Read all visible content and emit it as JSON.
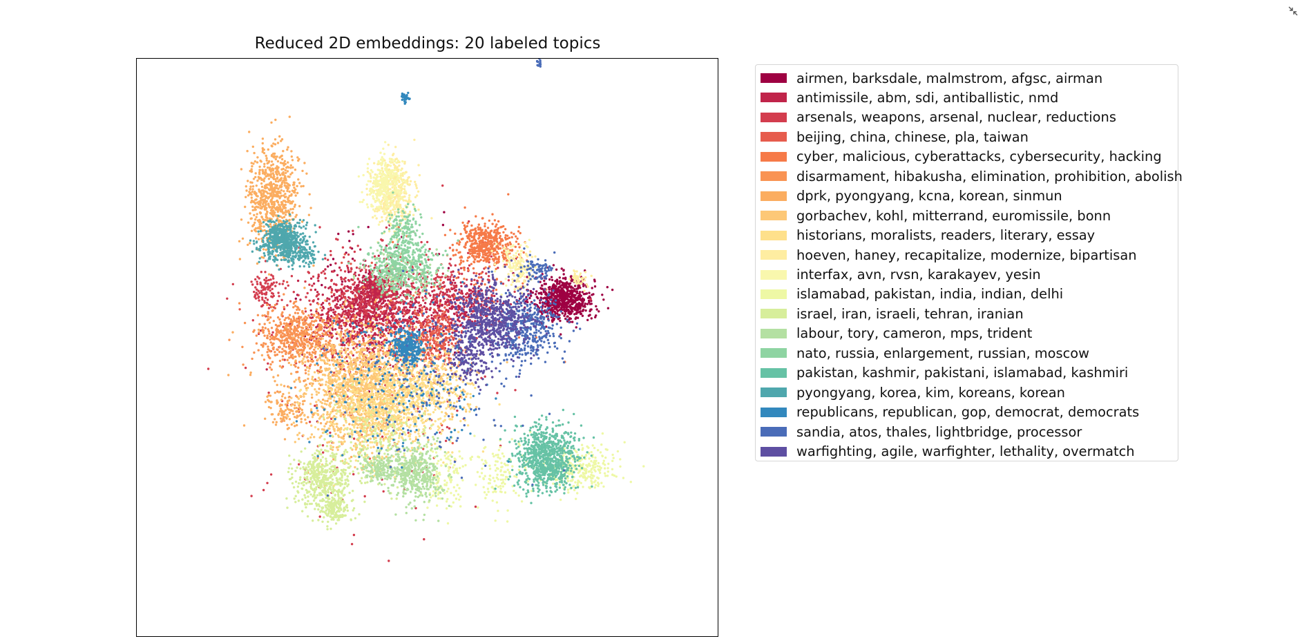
{
  "chart_data": {
    "type": "scatter",
    "title": "Reduced 2D embeddings: 20 labeled topics",
    "xlabel": "",
    "ylabel": "",
    "xlim": [
      0,
      100
    ],
    "ylim": [
      0,
      100
    ],
    "ticks_visible": false,
    "grid": false,
    "legend_position": "outside-right",
    "series": [
      {
        "name": "airmen, barksdale, malmstrom, afgsc, airman",
        "color": "#9e0142",
        "clusters": [
          {
            "cx": 73.5,
            "cy": 58.5,
            "sx": 2.6,
            "sy": 1.9,
            "n": 700
          },
          {
            "cx": 45,
            "cy": 57,
            "sx": 9,
            "sy": 8,
            "n": 100
          }
        ]
      },
      {
        "name": "antimissile, abm, sdi, antiballistic, nmd",
        "color": "#c0244a",
        "clusters": [
          {
            "cx": 40,
            "cy": 56,
            "sx": 4.5,
            "sy": 3.5,
            "n": 900
          },
          {
            "cx": 41,
            "cy": 60,
            "sx": 1.6,
            "sy": 1.3,
            "n": 220
          },
          {
            "cx": 55,
            "cy": 57,
            "sx": 4,
            "sy": 2.2,
            "n": 300
          }
        ]
      },
      {
        "name": "arsenals, weapons, arsenal, nuclear, reductions",
        "color": "#d33d4e",
        "clusters": [
          {
            "cx": 42,
            "cy": 58,
            "sx": 8,
            "sy": 5,
            "n": 500
          },
          {
            "cx": 22,
            "cy": 60,
            "sx": 1.2,
            "sy": 1.8,
            "n": 90
          },
          {
            "cx": 52,
            "cy": 61,
            "sx": 7,
            "sy": 2,
            "n": 150
          },
          {
            "cx": 40,
            "cy": 42,
            "sx": 10,
            "sy": 12,
            "n": 180
          }
        ]
      },
      {
        "name": "beijing, china, chinese, pla, taiwan",
        "color": "#e65c4d",
        "clusters": [
          {
            "cx": 51.5,
            "cy": 51.5,
            "sx": 1.8,
            "sy": 2.2,
            "n": 260
          },
          {
            "cx": 43,
            "cy": 50,
            "sx": 9,
            "sy": 8,
            "n": 100
          }
        ]
      },
      {
        "name": "cyber, malicious, cyberattacks, cybersecurity, hacking",
        "color": "#f67a48",
        "clusters": [
          {
            "cx": 60.2,
            "cy": 68,
            "sx": 2.5,
            "sy": 1.7,
            "n": 450
          },
          {
            "cx": 55,
            "cy": 60,
            "sx": 8,
            "sy": 6,
            "n": 60
          }
        ]
      },
      {
        "name": "disarmament, hibakusha, elimination, prohibition, abolish",
        "color": "#f99353",
        "clusters": [
          {
            "cx": 27.5,
            "cy": 52,
            "sx": 3.3,
            "sy": 2.3,
            "n": 520
          },
          {
            "cx": 36,
            "cy": 48,
            "sx": 7,
            "sy": 5,
            "n": 140
          }
        ]
      },
      {
        "name": "dprk, pyongyang, kcna, korean, sinmun",
        "color": "#fbad60",
        "clusters": [
          {
            "cx": 23.5,
            "cy": 76,
            "sx": 2.2,
            "sy": 4.5,
            "n": 700
          },
          {
            "cx": 36,
            "cy": 44,
            "sx": 8,
            "sy": 6,
            "n": 260
          },
          {
            "cx": 26,
            "cy": 39,
            "sx": 2,
            "sy": 1.5,
            "n": 100
          }
        ]
      },
      {
        "name": "gorbachev, kohl, mitterrand, euromissile, bonn",
        "color": "#fdc877",
        "clusters": [
          {
            "cx": 38,
            "cy": 42,
            "sx": 4.5,
            "sy": 5,
            "n": 1100
          },
          {
            "cx": 45,
            "cy": 45,
            "sx": 6,
            "sy": 3.5,
            "n": 400
          }
        ]
      },
      {
        "name": "historians, moralists, readers, literary, essay",
        "color": "#fee08b",
        "clusters": [
          {
            "cx": 43,
            "cy": 39,
            "sx": 5,
            "sy": 4,
            "n": 600
          },
          {
            "cx": 50,
            "cy": 43,
            "sx": 4,
            "sy": 3,
            "n": 250
          }
        ]
      },
      {
        "name": "hoeven, haney, recapitalize, modernize, bipartisan",
        "color": "#feeda1",
        "clusters": [
          {
            "cx": 44,
            "cy": 77,
            "sx": 1.8,
            "sy": 3,
            "n": 380
          },
          {
            "cx": 66,
            "cy": 63,
            "sx": 1.3,
            "sy": 1.8,
            "n": 90
          },
          {
            "cx": 76,
            "cy": 62,
            "sx": 0.8,
            "sy": 0.8,
            "n": 40
          }
        ]
      },
      {
        "name": "interfax, avn, rvsn, karakayev, yesin",
        "color": "#f9f7ad",
        "clusters": [
          {
            "cx": 42.5,
            "cy": 78,
            "sx": 1.5,
            "sy": 2.5,
            "n": 320
          },
          {
            "cx": 65,
            "cy": 65,
            "sx": 2,
            "sy": 2,
            "n": 60
          }
        ]
      },
      {
        "name": "islamabad, pakistan, india, indian, delhi",
        "color": "#eef8a5",
        "clusters": [
          {
            "cx": 76,
            "cy": 29,
            "sx": 3,
            "sy": 2,
            "n": 300
          },
          {
            "cx": 62,
            "cy": 28,
            "sx": 2.5,
            "sy": 3,
            "n": 120
          },
          {
            "cx": 53,
            "cy": 28,
            "sx": 2,
            "sy": 3,
            "n": 120
          }
        ]
      },
      {
        "name": "israel, iran, israeli, tehran, iranian",
        "color": "#d7ee9b",
        "clusters": [
          {
            "cx": 32,
            "cy": 27,
            "sx": 2.5,
            "sy": 2.5,
            "n": 450
          },
          {
            "cx": 34,
            "cy": 22,
            "sx": 1.2,
            "sy": 1.3,
            "n": 150
          },
          {
            "cx": 42,
            "cy": 33,
            "sx": 5,
            "sy": 4,
            "n": 200
          }
        ]
      },
      {
        "name": "labour, tory, cameron, mps, trident",
        "color": "#b4e0a2",
        "clusters": [
          {
            "cx": 48,
            "cy": 28,
            "sx": 2.2,
            "sy": 2.5,
            "n": 420
          },
          {
            "cx": 42,
            "cy": 29,
            "sx": 1.8,
            "sy": 1.2,
            "n": 160
          },
          {
            "cx": 46,
            "cy": 63,
            "sx": 3,
            "sy": 2,
            "n": 120
          }
        ]
      },
      {
        "name": "nato, russia, enlargement, russian, moscow",
        "color": "#8ed4a2",
        "clusters": [
          {
            "cx": 45.5,
            "cy": 64,
            "sx": 3,
            "sy": 2.3,
            "n": 420
          },
          {
            "cx": 46,
            "cy": 70,
            "sx": 1.5,
            "sy": 2,
            "n": 150
          }
        ]
      },
      {
        "name": "pakistan, kashmir, pakistani, islamabad, kashmiri",
        "color": "#66c2a5",
        "clusters": [
          {
            "cx": 70.5,
            "cy": 31,
            "sx": 2.6,
            "sy": 2.6,
            "n": 850
          }
        ]
      },
      {
        "name": "pyongyang, korea, kim, koreans, korean",
        "color": "#4fa7ad",
        "clusters": [
          {
            "cx": 25,
            "cy": 68.5,
            "sx": 1.8,
            "sy": 1.6,
            "n": 600
          },
          {
            "cx": 28.5,
            "cy": 66,
            "sx": 1.5,
            "sy": 1.2,
            "n": 100
          }
        ]
      },
      {
        "name": "republicans, republican, gop, democrat, democrats",
        "color": "#3288bd",
        "clusters": [
          {
            "cx": 46.5,
            "cy": 50,
            "sx": 1.4,
            "sy": 1.4,
            "n": 280
          },
          {
            "cx": 45,
            "cy": 45,
            "sx": 7,
            "sy": 7,
            "n": 220
          },
          {
            "cx": 46.2,
            "cy": 93.2,
            "sx": 0.35,
            "sy": 0.45,
            "n": 35
          }
        ]
      },
      {
        "name": "sandia, atos, thales, lightbridge, processor",
        "color": "#4a6cb8",
        "clusters": [
          {
            "cx": 67,
            "cy": 53,
            "sx": 3,
            "sy": 3,
            "n": 400
          },
          {
            "cx": 69,
            "cy": 63.5,
            "sx": 1.2,
            "sy": 1.2,
            "n": 80
          },
          {
            "cx": 50,
            "cy": 45,
            "sx": 8,
            "sy": 8,
            "n": 160
          },
          {
            "cx": 69.2,
            "cy": 99.3,
            "sx": 0.2,
            "sy": 0.4,
            "n": 15
          }
        ]
      },
      {
        "name": "warfighting, agile, warfighter, lethality, overmatch",
        "color": "#5e4fa2",
        "clusters": [
          {
            "cx": 61,
            "cy": 54.5,
            "sx": 3.3,
            "sy": 3.3,
            "n": 700
          },
          {
            "cx": 57,
            "cy": 48,
            "sx": 2,
            "sy": 2.5,
            "n": 150
          }
        ]
      }
    ]
  }
}
